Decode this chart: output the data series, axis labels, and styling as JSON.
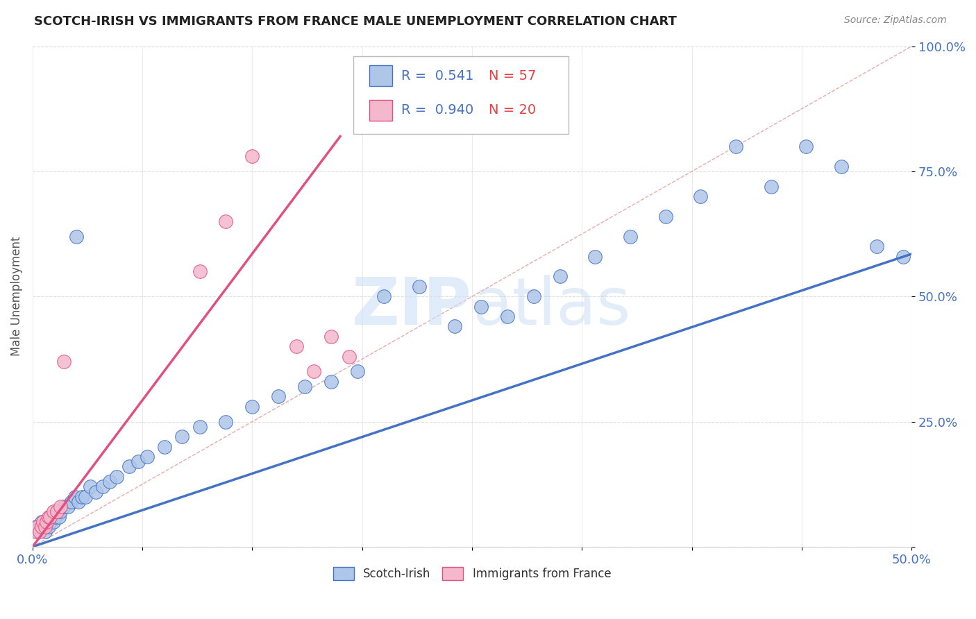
{
  "title": "SCOTCH-IRISH VS IMMIGRANTS FROM FRANCE MALE UNEMPLOYMENT CORRELATION CHART",
  "source": "Source: ZipAtlas.com",
  "ylabel": "Male Unemployment",
  "xlim": [
    0.0,
    0.5
  ],
  "ylim": [
    0.0,
    1.0
  ],
  "yticks": [
    0.0,
    0.25,
    0.5,
    0.75,
    1.0
  ],
  "ytick_labels": [
    "",
    "25.0%",
    "50.0%",
    "75.0%",
    "100.0%"
  ],
  "xticks": [
    0.0,
    0.0625,
    0.125,
    0.1875,
    0.25,
    0.3125,
    0.375,
    0.4375,
    0.5
  ],
  "xtick_labels": [
    "0.0%",
    "",
    "",
    "",
    "",
    "",
    "",
    "",
    "50.0%"
  ],
  "legend_r1": "R =  0.541",
  "legend_n1": "N = 57",
  "legend_r2": "R =  0.940",
  "legend_n2": "N = 20",
  "color_blue_fill": "#aec6e8",
  "color_blue_edge": "#4472c4",
  "color_pink_fill": "#f4b8cc",
  "color_pink_edge": "#e05080",
  "color_line_blue": "#4472c4",
  "color_line_pink": "#e05080",
  "color_diag": "#e8a0a0",
  "watermark": "ZIPatlas",
  "background_color": "#ffffff",
  "grid_color": "#d8d8d8",
  "scotch_irish_x": [
    0.002,
    0.003,
    0.004,
    0.005,
    0.006,
    0.007,
    0.008,
    0.009,
    0.01,
    0.011,
    0.012,
    0.013,
    0.014,
    0.015,
    0.016,
    0.018,
    0.02,
    0.022,
    0.024,
    0.026,
    0.028,
    0.03,
    0.033,
    0.036,
    0.04,
    0.044,
    0.048,
    0.055,
    0.06,
    0.065,
    0.075,
    0.085,
    0.095,
    0.11,
    0.125,
    0.14,
    0.155,
    0.17,
    0.185,
    0.2,
    0.22,
    0.24,
    0.255,
    0.27,
    0.285,
    0.3,
    0.32,
    0.34,
    0.36,
    0.38,
    0.4,
    0.42,
    0.44,
    0.46,
    0.48,
    0.495,
    0.025
  ],
  "scotch_irish_y": [
    0.04,
    0.03,
    0.04,
    0.05,
    0.04,
    0.03,
    0.05,
    0.04,
    0.05,
    0.06,
    0.05,
    0.06,
    0.07,
    0.06,
    0.07,
    0.08,
    0.08,
    0.09,
    0.1,
    0.09,
    0.1,
    0.1,
    0.12,
    0.11,
    0.12,
    0.13,
    0.14,
    0.16,
    0.17,
    0.18,
    0.2,
    0.22,
    0.24,
    0.25,
    0.28,
    0.3,
    0.32,
    0.33,
    0.35,
    0.5,
    0.52,
    0.44,
    0.48,
    0.46,
    0.5,
    0.54,
    0.58,
    0.62,
    0.66,
    0.7,
    0.8,
    0.72,
    0.8,
    0.76,
    0.6,
    0.58,
    0.62
  ],
  "france_x": [
    0.002,
    0.003,
    0.004,
    0.005,
    0.006,
    0.007,
    0.008,
    0.009,
    0.01,
    0.012,
    0.014,
    0.016,
    0.018,
    0.095,
    0.11,
    0.125,
    0.15,
    0.16,
    0.17,
    0.18
  ],
  "france_y": [
    0.03,
    0.04,
    0.03,
    0.04,
    0.05,
    0.04,
    0.05,
    0.06,
    0.06,
    0.07,
    0.07,
    0.08,
    0.37,
    0.55,
    0.65,
    0.78,
    0.4,
    0.35,
    0.42,
    0.38
  ]
}
